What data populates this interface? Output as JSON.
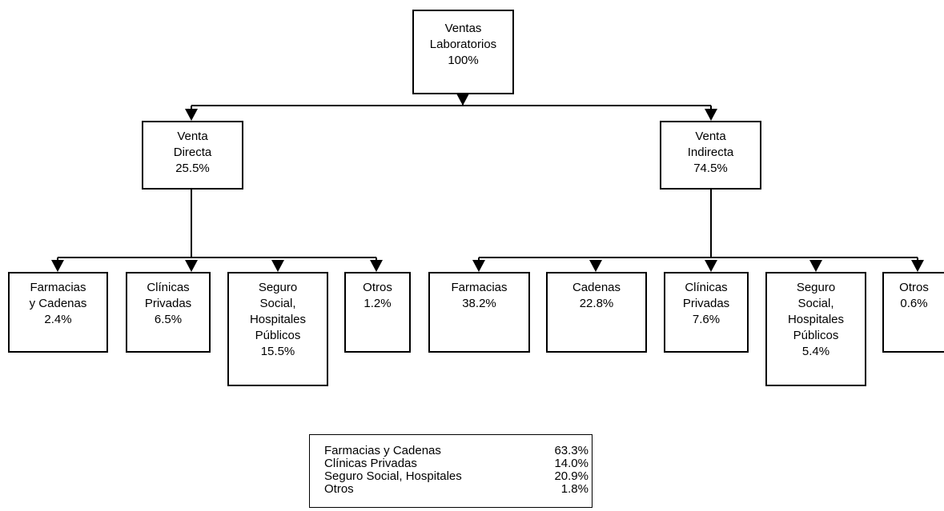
{
  "root": {
    "line1": "Ventas",
    "line2": "Laboratorios",
    "pct": "100%"
  },
  "directa": {
    "line1": "Venta",
    "line2": "Directa",
    "pct": "25.5%"
  },
  "indirecta": {
    "line1": "Venta",
    "line2": "Indirecta",
    "pct": "74.5%"
  },
  "directa_children": [
    {
      "lines": [
        "Farmacias",
        "y Cadenas"
      ],
      "pct": "2.4%"
    },
    {
      "lines": [
        "Clínicas",
        "Privadas"
      ],
      "pct": "6.5%"
    },
    {
      "lines": [
        "Seguro",
        "Social,",
        "Hospitales",
        "Públicos"
      ],
      "pct": "15.5%"
    },
    {
      "lines": [
        "Otros"
      ],
      "pct": "1.2%"
    }
  ],
  "indirecta_children": [
    {
      "lines": [
        "Farmacias"
      ],
      "pct": "38.2%"
    },
    {
      "lines": [
        "Cadenas"
      ],
      "pct": "22.8%"
    },
    {
      "lines": [
        "Clínicas",
        "Privadas"
      ],
      "pct": "7.6%"
    },
    {
      "lines": [
        "Seguro",
        "Social,",
        "Hospitales",
        "Públicos"
      ],
      "pct": "5.4%"
    },
    {
      "lines": [
        "Otros"
      ],
      "pct": "0.6%"
    }
  ],
  "summary": [
    {
      "label": "Farmacias y Cadenas",
      "value": "63.3%"
    },
    {
      "label": "Clínicas Privadas",
      "value": "14.0%"
    },
    {
      "label": "Seguro Social, Hospitales",
      "value": "20.9%"
    },
    {
      "label": "Otros",
      "value": "1.8%"
    }
  ]
}
